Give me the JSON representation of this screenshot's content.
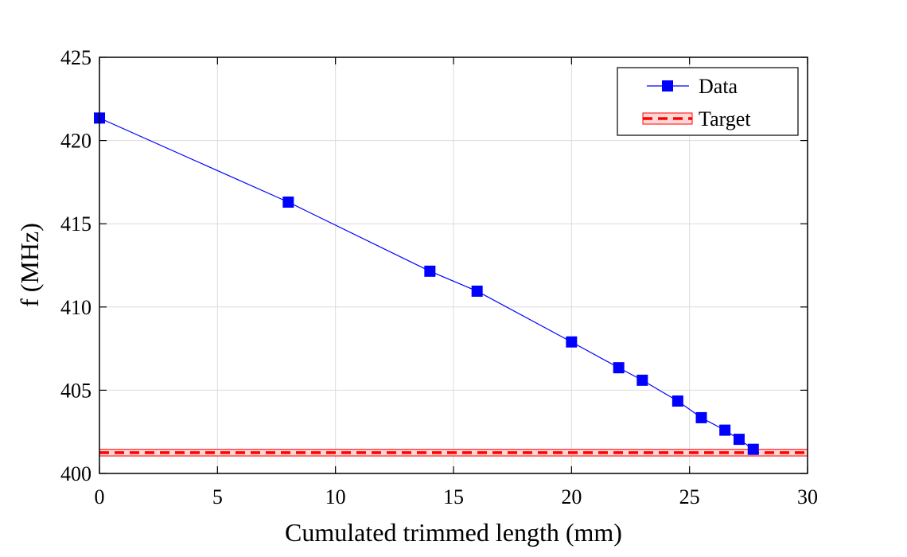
{
  "chart_data": {
    "type": "line",
    "title": "",
    "xlabel": "Cumulated trimmed length (mm)",
    "ylabel": "f (MHz)",
    "xlim": [
      0,
      30
    ],
    "ylim": [
      400,
      425
    ],
    "xticks": [
      0,
      5,
      10,
      15,
      20,
      25,
      30
    ],
    "yticks": [
      400,
      405,
      410,
      415,
      420,
      425
    ],
    "grid": true,
    "legend_position": "top-right",
    "series": [
      {
        "name": "Data",
        "color": "#0000ff",
        "marker": "square",
        "x": [
          0,
          8,
          14,
          16,
          20,
          22,
          23,
          24.5,
          25.5,
          26.5,
          27.1,
          27.7
        ],
        "y": [
          421.35,
          416.3,
          412.15,
          410.95,
          407.9,
          406.35,
          405.6,
          404.35,
          403.35,
          402.6,
          402.05,
          401.45
        ]
      }
    ],
    "reference": {
      "name": "Target",
      "value": 401.25,
      "band": [
        401.05,
        401.45
      ],
      "color": "#ff0000",
      "band_color": "#ffb3b3"
    }
  }
}
